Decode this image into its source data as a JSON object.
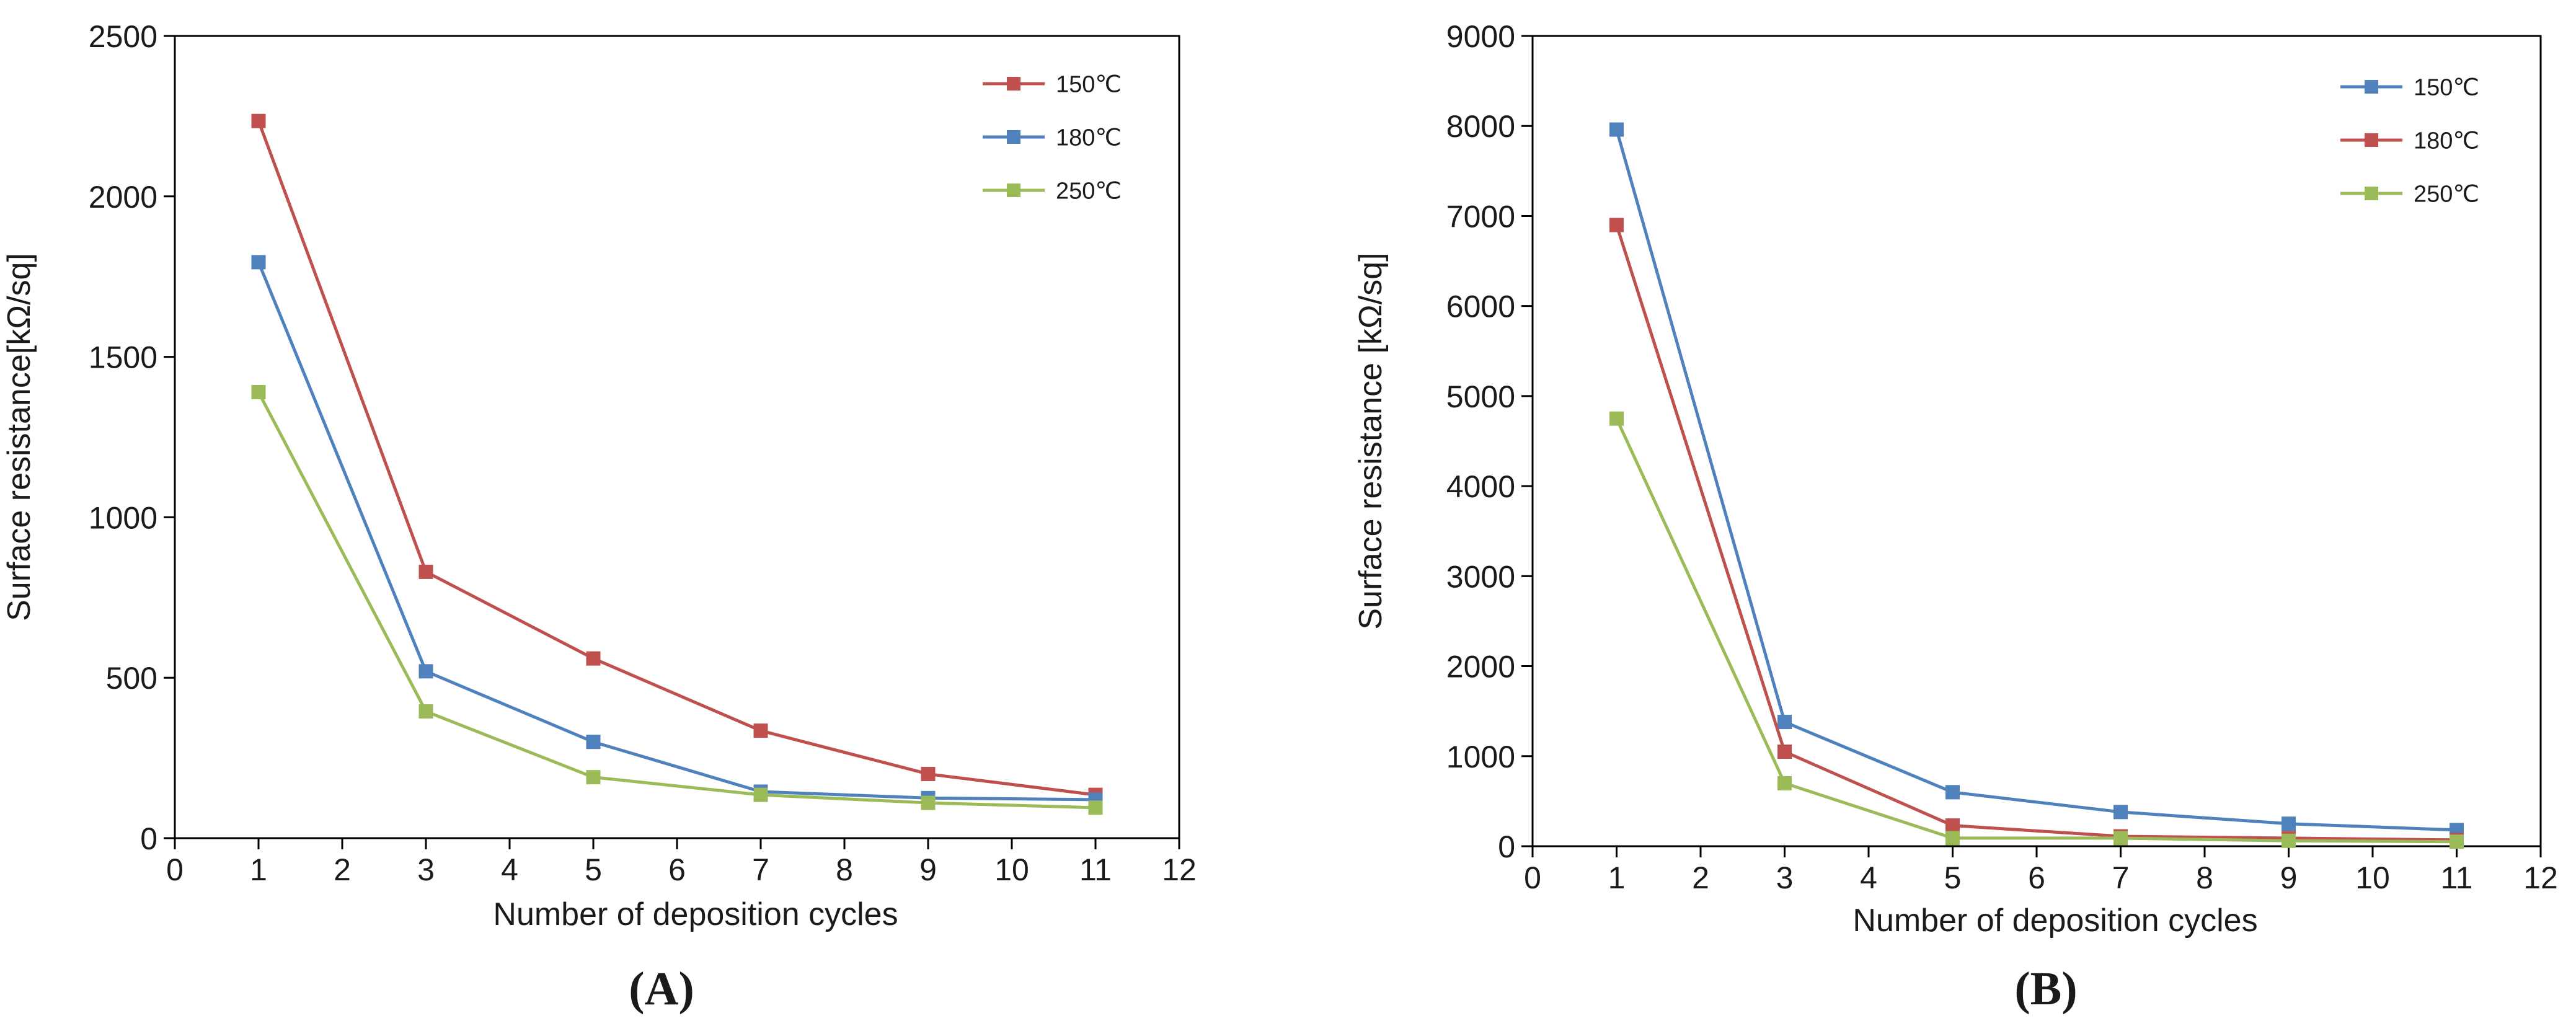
{
  "colors": {
    "red": "#C0504D",
    "blue": "#4F81BD",
    "green": "#9BBB59",
    "axis": "#000000"
  },
  "chart_data": [
    {
      "id": "A",
      "panel_label": "A",
      "type": "line",
      "xlabel": "Number of deposition cycles",
      "ylabel": "Surface resistance[kΩ/sq]",
      "xlim": [
        0,
        12
      ],
      "ylim": [
        0,
        2500
      ],
      "xticks": [
        0,
        1,
        2,
        3,
        4,
        5,
        6,
        7,
        8,
        9,
        10,
        11,
        12
      ],
      "yticks": [
        0,
        500,
        1000,
        1500,
        2000,
        2500
      ],
      "x": [
        1,
        3,
        5,
        7,
        9,
        11
      ],
      "legend_position": "top-right",
      "series": [
        {
          "name": "150℃",
          "color": "#C0504D",
          "values": [
            2235,
            830,
            560,
            335,
            200,
            135
          ]
        },
        {
          "name": "180℃",
          "color": "#4F81BD",
          "values": [
            1795,
            520,
            300,
            145,
            125,
            120
          ]
        },
        {
          "name": "250℃",
          "color": "#9BBB59",
          "values": [
            1390,
            395,
            190,
            135,
            110,
            95
          ]
        }
      ]
    },
    {
      "id": "B",
      "panel_label": "B",
      "type": "line",
      "xlabel": "Number of deposition cycles",
      "ylabel": "Surface resistance [kΩ/sq]",
      "xlim": [
        0,
        12
      ],
      "ylim": [
        0,
        9000
      ],
      "xticks": [
        0,
        1,
        2,
        3,
        4,
        5,
        6,
        7,
        8,
        9,
        10,
        11,
        12
      ],
      "yticks": [
        0,
        1000,
        2000,
        3000,
        4000,
        5000,
        6000,
        7000,
        8000,
        9000
      ],
      "x": [
        1,
        3,
        5,
        7,
        9,
        11
      ],
      "legend_position": "top-right",
      "series": [
        {
          "name": "150℃",
          "color": "#4F81BD",
          "values": [
            7960,
            1380,
            600,
            380,
            250,
            180
          ]
        },
        {
          "name": "180℃",
          "color": "#C0504D",
          "values": [
            6900,
            1050,
            230,
            110,
            90,
            70
          ]
        },
        {
          "name": "250℃",
          "color": "#9BBB59",
          "values": [
            4750,
            700,
            90,
            90,
            60,
            50
          ]
        }
      ]
    }
  ]
}
